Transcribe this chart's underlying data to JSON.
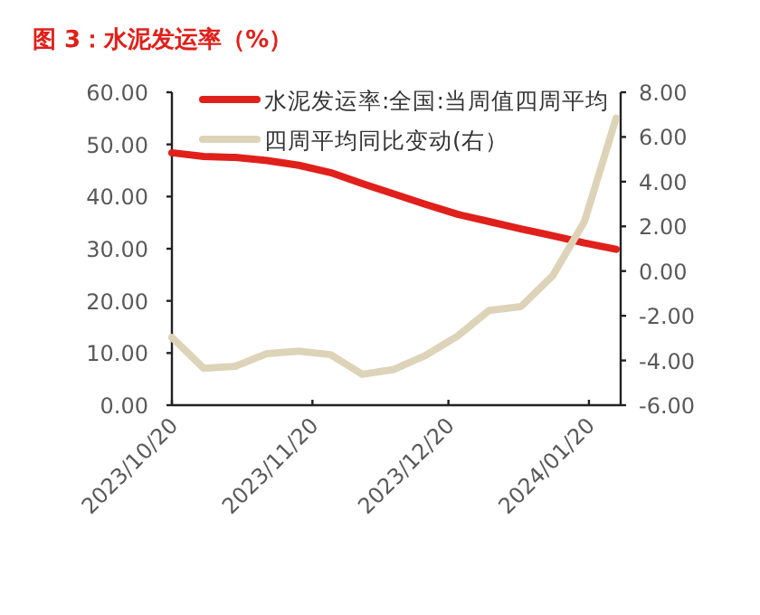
{
  "chart_data": {
    "type": "line",
    "title": "图 3：水泥发运率（%）",
    "x": [
      "2023-10-20",
      "2023-10-27",
      "2023-11-03",
      "2023-11-10",
      "2023-11-17",
      "2023-11-24",
      "2023-12-01",
      "2023-12-08",
      "2023-12-15",
      "2023-12-22",
      "2023-12-29",
      "2024-01-05",
      "2024-01-12",
      "2024-01-19",
      "2024-01-26"
    ],
    "series": [
      {
        "name": "水泥发运率:全国:当周值四周平均",
        "color": "#e0201b",
        "values": [
          48.4,
          47.7,
          47.5,
          46.9,
          46.0,
          44.6,
          42.5,
          40.5,
          38.5,
          36.6,
          35.2,
          33.8,
          32.5,
          31.1,
          29.9
        ]
      },
      {
        "name": "四周平均同比变动(右）",
        "color": "#ddd3b8",
        "axis": "y2",
        "values": [
          -2.97,
          -4.35,
          -4.26,
          -3.69,
          -3.58,
          -3.74,
          -4.62,
          -4.4,
          -3.77,
          -2.91,
          -1.76,
          -1.59,
          -0.21,
          2.21,
          6.84
        ]
      }
    ],
    "xlim": [
      "2023-10-20",
      "2024-01-27"
    ],
    "xticks": [
      {
        "value": "2023-10-20",
        "label": "2023/10/20"
      },
      {
        "value": "2023-11-20",
        "label": "2023/11/20"
      },
      {
        "value": "2023-12-20",
        "label": "2023/12/20"
      },
      {
        "value": "2024-01-20",
        "label": "2024/01/20"
      }
    ],
    "ylim": [
      0,
      60
    ],
    "yticks": [
      {
        "value": 0,
        "label": "0.00"
      },
      {
        "value": 10,
        "label": "10.00"
      },
      {
        "value": 20,
        "label": "20.00"
      },
      {
        "value": 30,
        "label": "30.00"
      },
      {
        "value": 40,
        "label": "40.00"
      },
      {
        "value": 50,
        "label": "50.00"
      },
      {
        "value": 60,
        "label": "60.00"
      }
    ],
    "y2lim": [
      -6,
      8
    ],
    "y2ticks": [
      {
        "value": -6,
        "label": "-6.00"
      },
      {
        "value": -4,
        "label": "-4.00"
      },
      {
        "value": -2,
        "label": "-2.00"
      },
      {
        "value": 0,
        "label": "0.00"
      },
      {
        "value": 2,
        "label": "2.00"
      },
      {
        "value": 4,
        "label": "4.00"
      },
      {
        "value": 6,
        "label": "6.00"
      },
      {
        "value": 8,
        "label": "8.00"
      }
    ],
    "legend": "top right",
    "marker": "none",
    "line_style": "solid"
  }
}
